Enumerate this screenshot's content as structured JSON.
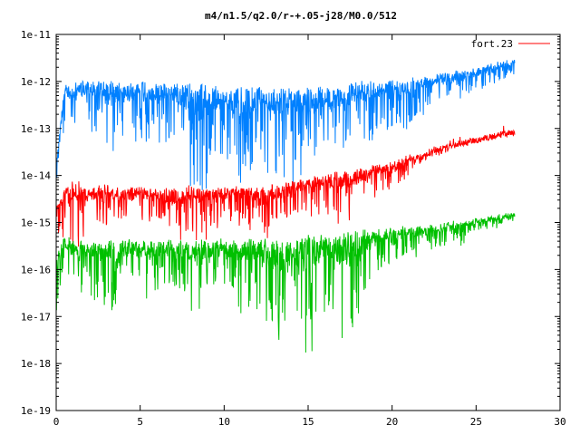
{
  "chart_data": {
    "type": "line",
    "title": "m4/n1.5/q2.0/r-+.05-j28/M0.0/512",
    "xlabel": "",
    "ylabel": "",
    "xlim": [
      0,
      30
    ],
    "ylim": [
      1e-19,
      1e-11
    ],
    "y_scale": "log",
    "x_ticks": [
      0,
      5,
      10,
      15,
      20,
      25,
      30
    ],
    "x_tick_labels": [
      "0",
      "5",
      "10",
      "15",
      "20",
      "25",
      "30"
    ],
    "y_ticks": [
      1e-19,
      1e-18,
      1e-17,
      1e-16,
      1e-15,
      1e-14,
      1e-13,
      1e-12,
      1e-11
    ],
    "y_tick_labels": [
      "1e-19",
      "1e-18",
      "1e-17",
      "1e-16",
      "1e-15",
      "1e-14",
      "1e-13",
      "1e-12",
      "1e-11"
    ],
    "grid": false,
    "legend": {
      "position": "top-right",
      "entries": [
        {
          "label": "fort.23",
          "color": "#ff0000"
        }
      ]
    },
    "series": [
      {
        "color": "#0080ff",
        "x": [
          0,
          0.5,
          1,
          2,
          3,
          4,
          5,
          6,
          7,
          8,
          9,
          10,
          11,
          12,
          13,
          14,
          15,
          16,
          17,
          18,
          19,
          20,
          21,
          22,
          23,
          24,
          25,
          26,
          27.3
        ],
        "y": [
          2e-14,
          8e-13,
          9e-13,
          1e-12,
          1e-12,
          8e-13,
          1e-12,
          9e-13,
          8e-13,
          9e-13,
          8e-13,
          7e-13,
          7e-13,
          7e-13,
          7e-13,
          7e-13,
          7e-13,
          7e-13,
          8e-13,
          9e-13,
          1e-12,
          1e-12,
          1.1e-12,
          1.2e-12,
          1.4e-12,
          1.6e-12,
          1.8e-12,
          2.2e-12,
          2.8e-12
        ],
        "ymin": [
          5e-15,
          1e-13,
          5e-14,
          1e-13,
          1.5e-14,
          6e-14,
          5e-14,
          5e-14,
          4e-14,
          5e-15,
          3e-15,
          3e-14,
          6e-15,
          2e-14,
          7e-15,
          5e-15,
          1e-14,
          3e-14,
          2e-14,
          4e-14,
          5e-14,
          8e-14,
          7e-14,
          2e-13,
          3e-13,
          3e-13,
          5e-13,
          7e-13,
          1e-12
        ]
      },
      {
        "name": "fort.23",
        "color": "#ff0000",
        "x": [
          0,
          0.5,
          1,
          2,
          3,
          4,
          5,
          6,
          7,
          8,
          9,
          10,
          11,
          12,
          13,
          14,
          15,
          16,
          17,
          18,
          19,
          20,
          21,
          22,
          23,
          24,
          25,
          26,
          27.3
        ],
        "y": [
          2e-15,
          6e-15,
          8e-15,
          5e-15,
          6e-15,
          5e-15,
          6e-15,
          5e-15,
          5e-15,
          6e-15,
          5e-15,
          5e-15,
          6e-15,
          5e-15,
          6e-15,
          7e-15,
          8e-15,
          1e-14,
          1.2e-14,
          1.3e-14,
          1.6e-14,
          1.8e-14,
          2.5e-14,
          3e-14,
          4e-14,
          5e-14,
          6e-14,
          7e-14,
          8.5e-14
        ],
        "ymin": [
          3e-16,
          5e-16,
          1.5e-16,
          8e-16,
          5e-16,
          1e-15,
          8e-16,
          1e-15,
          4e-16,
          4e-16,
          3e-16,
          1e-15,
          8e-16,
          4e-16,
          5e-16,
          1e-15,
          1e-15,
          1.5e-15,
          8e-16,
          1.5e-15,
          3e-15,
          3e-15,
          1e-14,
          2e-14,
          2.5e-14,
          3.5e-14,
          4.5e-14,
          5.5e-14,
          7e-14
        ]
      },
      {
        "color": "#00c000",
        "x": [
          0,
          0.5,
          1,
          2,
          3,
          4,
          5,
          6,
          7,
          8,
          9,
          10,
          11,
          12,
          13,
          14,
          15,
          16,
          17,
          18,
          19,
          20,
          21,
          22,
          23,
          24,
          25,
          26,
          27.3
        ],
        "y": [
          2e-16,
          5e-16,
          4e-16,
          4e-16,
          4e-16,
          4e-16,
          4e-16,
          4e-16,
          4e-16,
          4e-16,
          4e-16,
          4e-16,
          4e-16,
          4e-16,
          4e-16,
          4e-16,
          5e-16,
          5e-16,
          6e-16,
          6e-16,
          7e-16,
          7e-16,
          8e-16,
          8e-16,
          9e-16,
          1e-15,
          1.1e-15,
          1.3e-15,
          1.5e-15
        ],
        "ymin": [
          4e-18,
          5e-17,
          2e-17,
          3e-17,
          8e-18,
          3e-17,
          2e-17,
          3e-17,
          3e-17,
          1e-17,
          2e-17,
          5e-17,
          1e-17,
          1e-17,
          2e-18,
          1e-17,
          1e-18,
          1e-17,
          2e-18,
          1e-17,
          5e-17,
          1e-16,
          1.5e-16,
          2e-16,
          3e-16,
          3e-16,
          5e-16,
          7e-16,
          1e-15
        ]
      }
    ]
  }
}
